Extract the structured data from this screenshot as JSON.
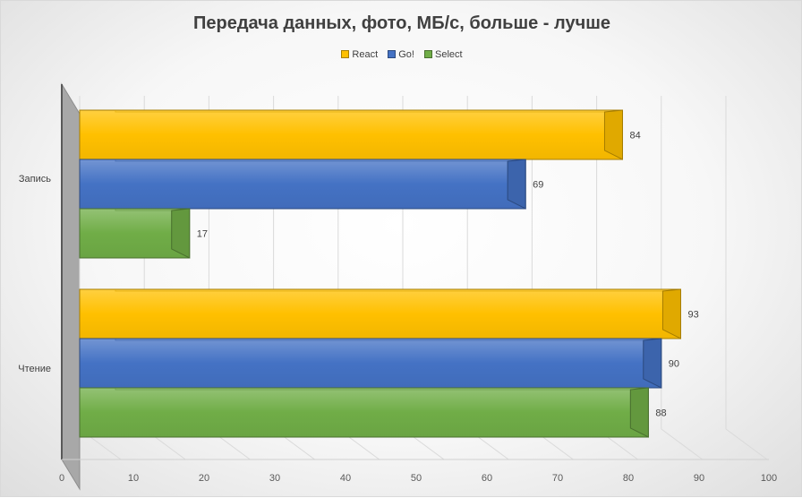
{
  "chart_data": {
    "type": "bar",
    "orientation": "horizontal",
    "style": "3d-clustered",
    "title": "Передача данных, фото, МБ/с, больше - лучше",
    "categories": [
      "Запись",
      "Чтение"
    ],
    "series": [
      {
        "name": "React",
        "color": "#ffc000",
        "values": [
          84,
          93
        ]
      },
      {
        "name": "Go!",
        "color": "#4472c4",
        "values": [
          69,
          90
        ]
      },
      {
        "name": "Select",
        "color": "#70ad47",
        "values": [
          17,
          88
        ]
      }
    ],
    "x_ticks": [
      0,
      10,
      20,
      30,
      40,
      50,
      60,
      70,
      80,
      90,
      100
    ],
    "xlim": [
      0,
      100
    ],
    "xlabel": "",
    "ylabel": "",
    "grid": true,
    "legend_position": "top",
    "data_labels": true
  }
}
